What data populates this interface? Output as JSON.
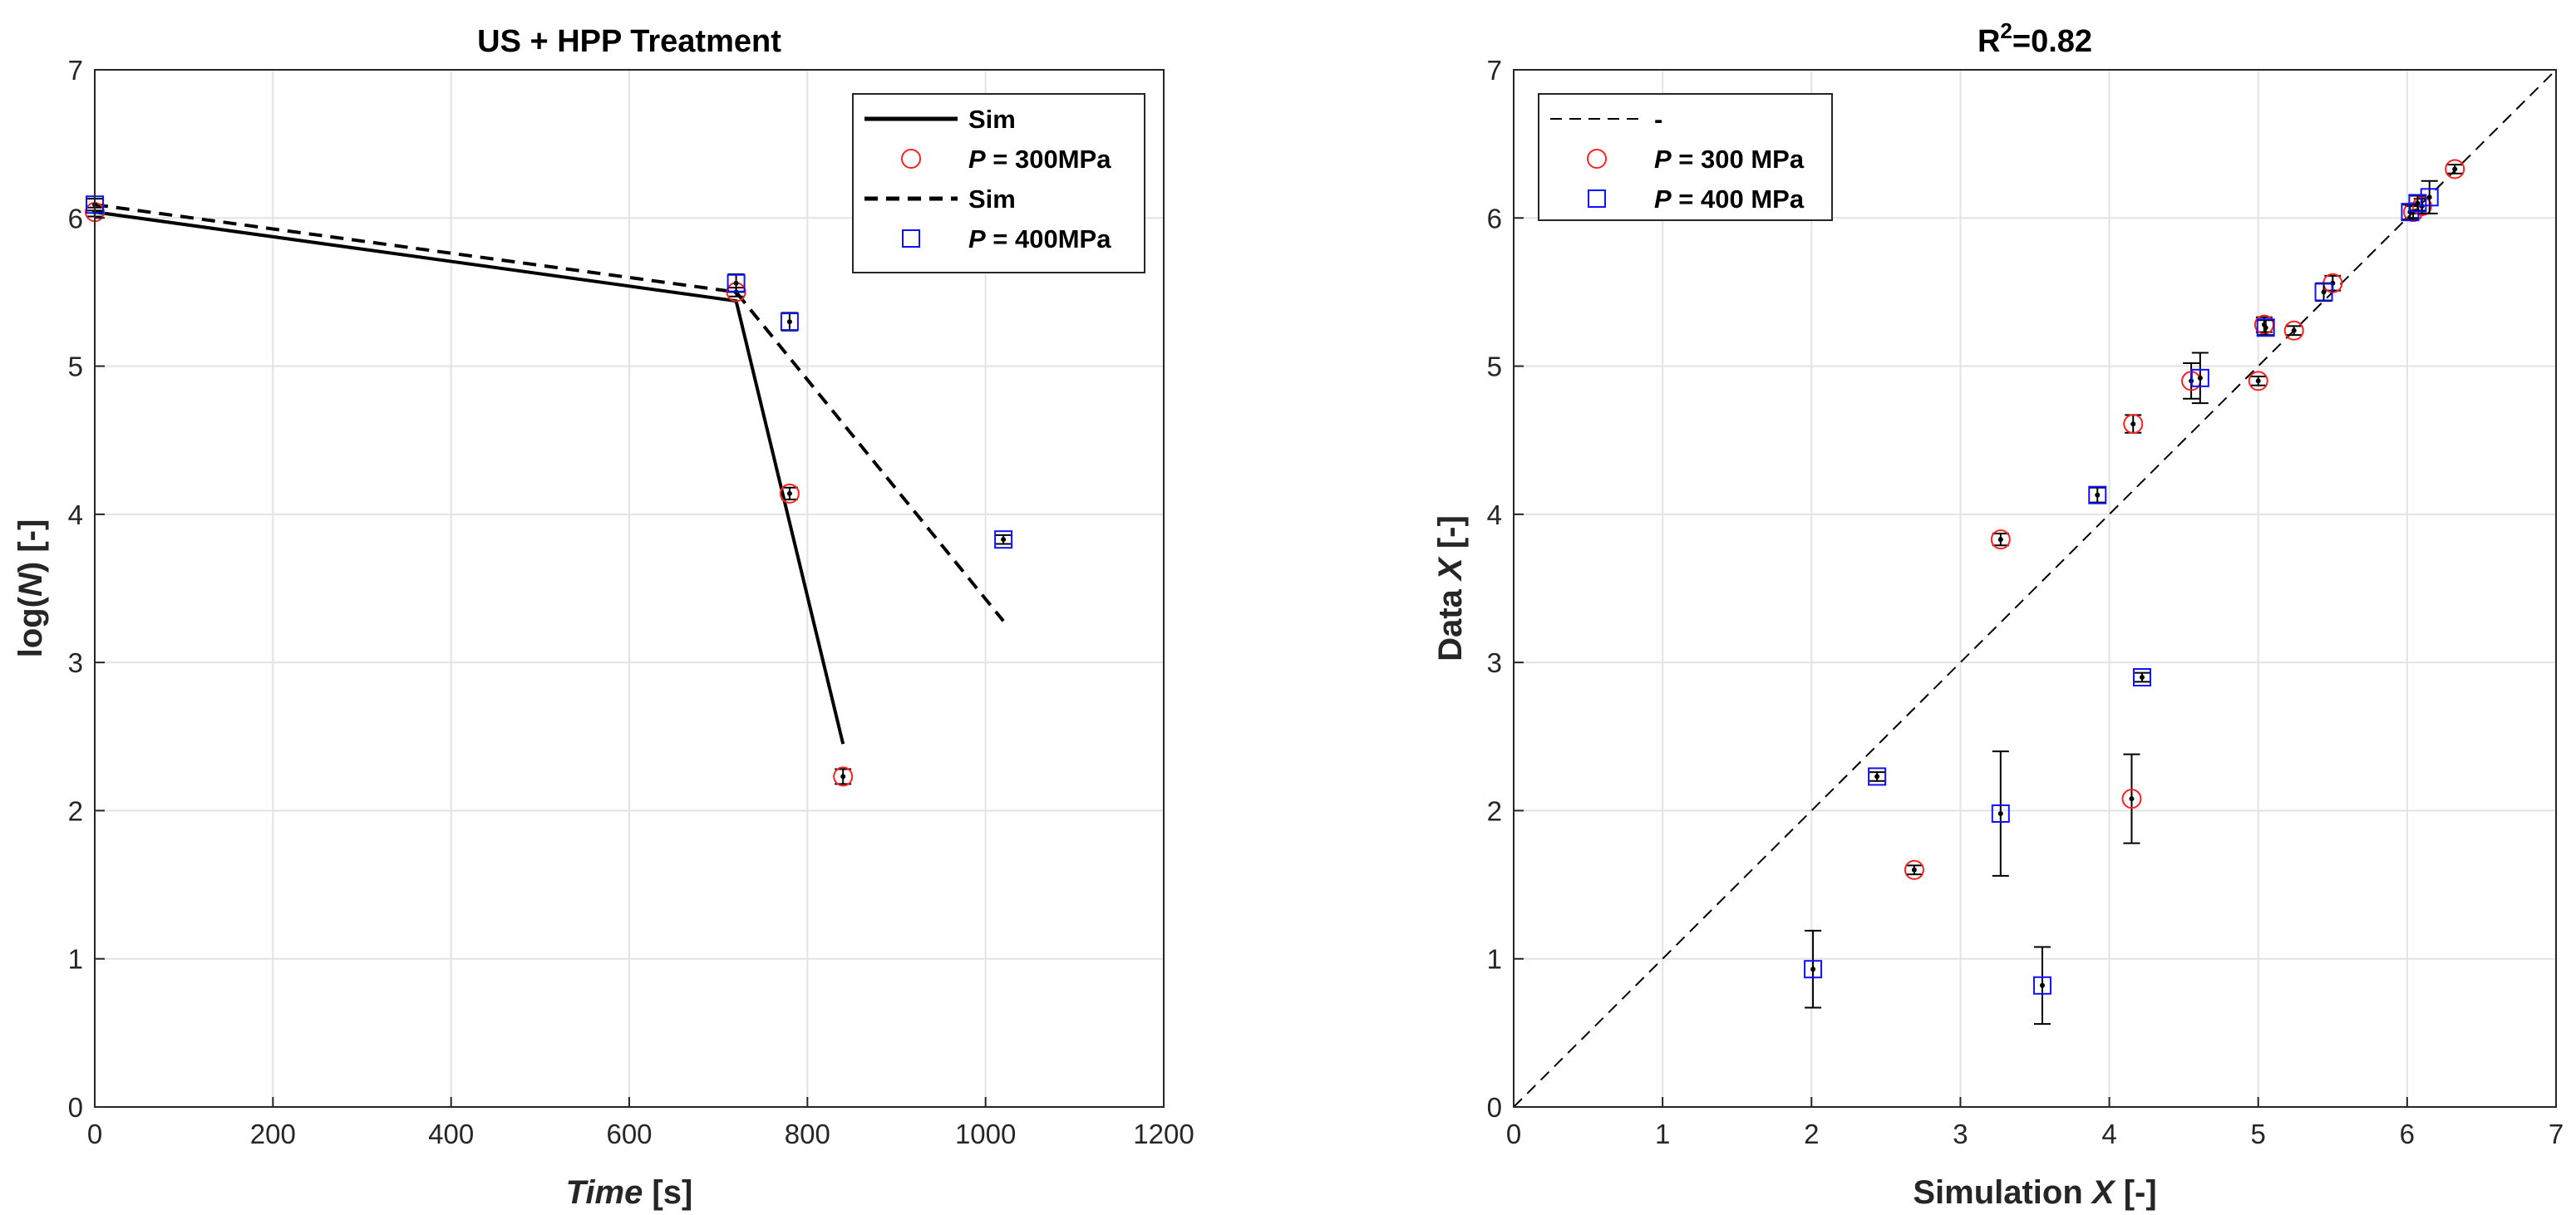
{
  "chart_data": [
    {
      "type": "line",
      "title": "US + HPP Treatment",
      "xlabel": {
        "italic": "Time",
        "rest": " [s]"
      },
      "ylabel": {
        "pre": "log(",
        "italic": "N",
        "rest": ") [-]"
      },
      "xlim": [
        0,
        1200
      ],
      "ylim": [
        0,
        7
      ],
      "xticks": [
        0,
        200,
        400,
        600,
        800,
        1000,
        1200
      ],
      "yticks": [
        0,
        1,
        2,
        3,
        4,
        5,
        6,
        7
      ],
      "grid": true,
      "legend_position": "top-right",
      "legend": [
        {
          "label": "Sim",
          "style": "solid-line"
        },
        {
          "label_italic": "P",
          "label_rest": " = 300MPa",
          "style": "red-circle"
        },
        {
          "label": "Sim",
          "style": "dashed-line"
        },
        {
          "label_italic": "P",
          "label_rest": " = 400MPa",
          "style": "blue-square"
        }
      ],
      "series": [
        {
          "name": "Sim (300 MPa)",
          "style": "solid",
          "x": [
            0,
            720,
            840
          ],
          "y": [
            6.04,
            5.44,
            2.45
          ]
        },
        {
          "name": "Sim (400 MPa)",
          "style": "dashed",
          "x": [
            0,
            720,
            1020
          ],
          "y": [
            6.09,
            5.5,
            3.28
          ]
        },
        {
          "name": "P = 300MPa",
          "marker": "circle",
          "x": [
            0,
            720,
            780,
            840
          ],
          "y": [
            6.04,
            5.5,
            4.14,
            2.23
          ],
          "err": [
            0.03,
            0.03,
            0.04,
            0.05
          ]
        },
        {
          "name": "P = 400MPa",
          "marker": "square",
          "x": [
            0,
            720,
            780,
            1020
          ],
          "y": [
            6.09,
            5.56,
            5.3,
            3.83
          ],
          "err": [
            0.04,
            0.06,
            0.06,
            0.03
          ]
        }
      ]
    },
    {
      "type": "scatter",
      "title_base": "R",
      "title_sup": "2",
      "title_rest": "=0.82",
      "xlabel": {
        "pre": "Simulation ",
        "italic": "X",
        "rest": " [-]"
      },
      "ylabel": {
        "pre": "Data ",
        "italic": "X",
        "rest": " [-]"
      },
      "xlim": [
        0,
        7
      ],
      "ylim": [
        0,
        7
      ],
      "xticks": [
        0,
        1,
        2,
        3,
        4,
        5,
        6,
        7
      ],
      "yticks": [
        0,
        1,
        2,
        3,
        4,
        5,
        6,
        7
      ],
      "grid": true,
      "legend_position": "top-left",
      "legend": [
        {
          "label": "-",
          "style": "dashed-thin-line"
        },
        {
          "label_italic": "P",
          "label_rest": " = 300 MPa",
          "style": "red-circle"
        },
        {
          "label_italic": "P",
          "label_rest": " = 400 MPa",
          "style": "blue-square"
        }
      ],
      "reference_line": {
        "x": [
          0,
          7
        ],
        "y": [
          0,
          7
        ]
      },
      "series": [
        {
          "name": "P = 300 MPa",
          "marker": "circle",
          "x": [
            2.69,
            3.27,
            4.15,
            4.16,
            4.55,
            5.0,
            5.04,
            5.24,
            5.5,
            6.04,
            6.1,
            6.32
          ],
          "y": [
            1.6,
            3.83,
            2.08,
            4.61,
            4.9,
            4.9,
            5.28,
            5.24,
            5.56,
            6.04,
            6.08,
            6.33
          ],
          "err": [
            0.03,
            0.04,
            0.3,
            0.06,
            0.12,
            0.03,
            0.05,
            0.03,
            0.05,
            0.04,
            0.05,
            0.03
          ]
        },
        {
          "name": "P = 400 MPa",
          "marker": "square",
          "x": [
            2.01,
            2.44,
            3.27,
            3.55,
            3.92,
            4.22,
            4.61,
            5.05,
            5.44,
            6.02,
            6.07,
            6.15
          ],
          "y": [
            0.93,
            2.23,
            1.98,
            0.82,
            4.13,
            2.9,
            4.92,
            5.26,
            5.5,
            6.04,
            6.1,
            6.14
          ],
          "err": [
            0.26,
            0.03,
            0.42,
            0.26,
            0.05,
            0.03,
            0.17,
            0.05,
            0.06,
            0.05,
            0.05,
            0.11
          ]
        }
      ]
    }
  ]
}
